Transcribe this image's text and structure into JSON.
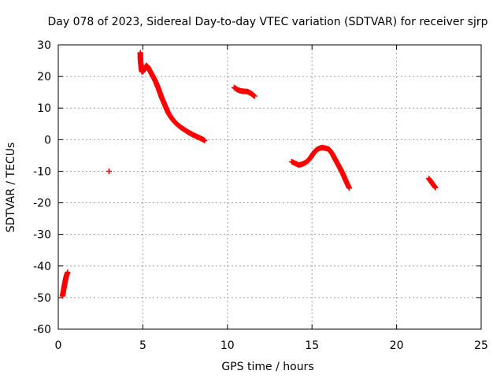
{
  "chart_data": {
    "type": "scatter",
    "title": "Day 078 of 2023, Sidereal Day-to-day VTEC variation (SDTVAR) for receiver sjrp",
    "xlabel": "GPS time / hours",
    "ylabel": "SDTVAR / TECUs",
    "xlim": [
      0,
      25
    ],
    "ylim": [
      -60,
      30
    ],
    "xticks": [
      0,
      5,
      10,
      15,
      20,
      25
    ],
    "yticks": [
      -60,
      -50,
      -40,
      -30,
      -20,
      -10,
      0,
      10,
      20,
      30
    ],
    "grid": true,
    "marker": "plus",
    "series_color": "#ff0000",
    "series": [
      {
        "name": "segment-1",
        "x": [
          0.25,
          0.3,
          0.35,
          0.4,
          0.45,
          0.5,
          0.55
        ],
        "y": [
          -49.5,
          -48,
          -46.5,
          -45,
          -43.8,
          -42.8,
          -42
        ]
      },
      {
        "name": "segment-2",
        "x": [
          3.0
        ],
        "y": [
          -10
        ]
      },
      {
        "name": "segment-3",
        "x": [
          4.85,
          4.85,
          4.87,
          4.9,
          4.92,
          4.95,
          5.0,
          5.1,
          5.2,
          5.3,
          5.5,
          5.7,
          5.9,
          6.1,
          6.3,
          6.5,
          6.7,
          6.9,
          7.1,
          7.3,
          7.5,
          7.7,
          7.9,
          8.1,
          8.3,
          8.5,
          8.65
        ],
        "y": [
          27.5,
          26,
          24.5,
          23,
          22,
          21.5,
          21.5,
          22.5,
          23.5,
          23,
          21,
          19,
          16.5,
          13.5,
          11,
          8.5,
          6.8,
          5.5,
          4.5,
          3.7,
          3,
          2.3,
          1.7,
          1.2,
          0.7,
          0.2,
          -0.3
        ]
      },
      {
        "name": "segment-4",
        "x": [
          10.4,
          10.6,
          10.8,
          11.0,
          11.2,
          11.4,
          11.6
        ],
        "y": [
          16.5,
          15.8,
          15.4,
          15.3,
          15.2,
          14.6,
          13.8
        ]
      },
      {
        "name": "segment-5",
        "x": [
          13.8,
          14.0,
          14.2,
          14.4,
          14.6,
          14.8,
          15.0,
          15.2,
          15.4,
          15.6,
          15.8,
          16.0,
          16.2,
          16.4,
          16.6,
          16.8,
          17.0,
          17.2
        ],
        "y": [
          -7,
          -7.5,
          -8,
          -7.8,
          -7.3,
          -6.5,
          -5,
          -3.5,
          -2.8,
          -2.5,
          -2.7,
          -3,
          -4.5,
          -6.5,
          -8.5,
          -10.5,
          -13,
          -15.3
        ]
      },
      {
        "name": "segment-6",
        "x": [
          21.9,
          22.0,
          22.1,
          22.2,
          22.3
        ],
        "y": [
          -12.3,
          -13,
          -13.8,
          -14.5,
          -15.2
        ]
      }
    ]
  }
}
